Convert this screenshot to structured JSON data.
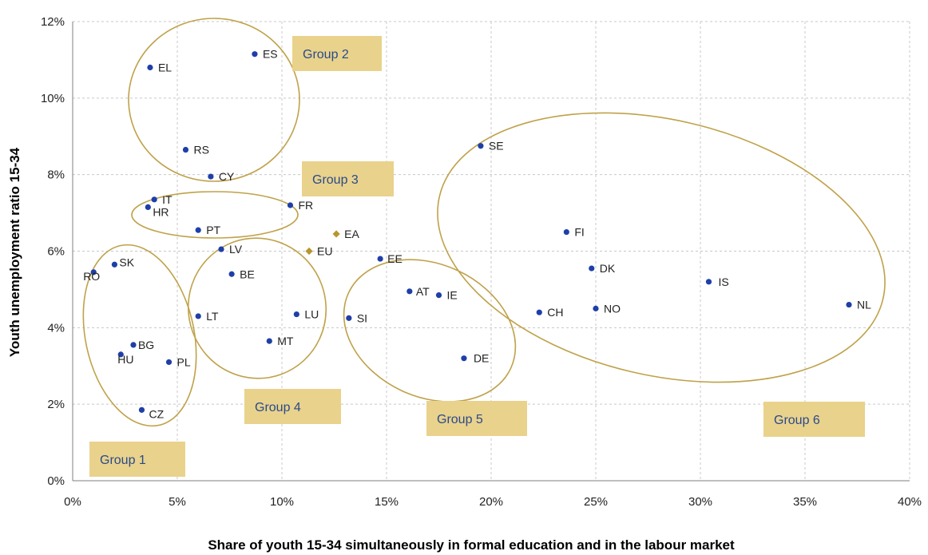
{
  "chart_data": {
    "type": "scatter",
    "xlabel": "Share of youth 15-34 simultaneously in formal education and in the labour market",
    "ylabel": "Youth unemployment ratio 15-34",
    "xlim": [
      0,
      40
    ],
    "ylim": [
      0,
      12
    ],
    "x_ticks": [
      "0%",
      "5%",
      "10%",
      "15%",
      "20%",
      "25%",
      "30%",
      "35%",
      "40%"
    ],
    "y_ticks": [
      "0%",
      "2%",
      "4%",
      "6%",
      "8%",
      "10%",
      "12%"
    ],
    "grid": "dashed",
    "colors": {
      "country": "#1f3fa8",
      "aggregate": "#b8962e",
      "group_ellipse": "#bfa24a",
      "group_box": "#e9d28b",
      "group_text": "#2a4a8c"
    },
    "points": [
      {
        "label": "EL",
        "x": 3.7,
        "y": 10.8,
        "kind": "country"
      },
      {
        "label": "ES",
        "x": 8.7,
        "y": 11.15,
        "kind": "country"
      },
      {
        "label": "RS",
        "x": 5.4,
        "y": 8.65,
        "kind": "country"
      },
      {
        "label": "CY",
        "x": 6.6,
        "y": 7.95,
        "kind": "country"
      },
      {
        "label": "IT",
        "x": 3.9,
        "y": 7.35,
        "kind": "country"
      },
      {
        "label": "HR",
        "x": 3.6,
        "y": 7.15,
        "kind": "country"
      },
      {
        "label": "FR",
        "x": 10.4,
        "y": 7.2,
        "kind": "country"
      },
      {
        "label": "PT",
        "x": 6.0,
        "y": 6.55,
        "kind": "country"
      },
      {
        "label": "LV",
        "x": 7.1,
        "y": 6.05,
        "kind": "country"
      },
      {
        "label": "BE",
        "x": 7.6,
        "y": 5.4,
        "kind": "country"
      },
      {
        "label": "LT",
        "x": 6.0,
        "y": 4.3,
        "kind": "country"
      },
      {
        "label": "LU",
        "x": 10.7,
        "y": 4.35,
        "kind": "country"
      },
      {
        "label": "MT",
        "x": 9.4,
        "y": 3.65,
        "kind": "country"
      },
      {
        "label": "SK",
        "x": 2.0,
        "y": 5.65,
        "kind": "country"
      },
      {
        "label": "RO",
        "x": 1.0,
        "y": 5.45,
        "kind": "country"
      },
      {
        "label": "BG",
        "x": 2.9,
        "y": 3.55,
        "kind": "country"
      },
      {
        "label": "HU",
        "x": 2.3,
        "y": 3.3,
        "kind": "country"
      },
      {
        "label": "PL",
        "x": 4.6,
        "y": 3.1,
        "kind": "country"
      },
      {
        "label": "CZ",
        "x": 3.3,
        "y": 1.85,
        "kind": "country"
      },
      {
        "label": "SI",
        "x": 13.2,
        "y": 4.25,
        "kind": "country"
      },
      {
        "label": "EE",
        "x": 14.7,
        "y": 5.8,
        "kind": "country"
      },
      {
        "label": "AT",
        "x": 16.1,
        "y": 4.95,
        "kind": "country"
      },
      {
        "label": "IE",
        "x": 17.5,
        "y": 4.85,
        "kind": "country"
      },
      {
        "label": "DE",
        "x": 18.7,
        "y": 3.2,
        "kind": "country"
      },
      {
        "label": "SE",
        "x": 19.5,
        "y": 8.75,
        "kind": "country"
      },
      {
        "label": "FI",
        "x": 23.6,
        "y": 6.5,
        "kind": "country"
      },
      {
        "label": "DK",
        "x": 24.8,
        "y": 5.55,
        "kind": "country"
      },
      {
        "label": "CH",
        "x": 22.3,
        "y": 4.4,
        "kind": "country"
      },
      {
        "label": "NO",
        "x": 25.0,
        "y": 4.5,
        "kind": "country"
      },
      {
        "label": "IS",
        "x": 30.4,
        "y": 5.2,
        "kind": "country"
      },
      {
        "label": "NL",
        "x": 37.1,
        "y": 4.6,
        "kind": "country"
      },
      {
        "label": "EA",
        "x": 12.6,
        "y": 6.45,
        "kind": "aggregate"
      },
      {
        "label": "EU",
        "x": 11.3,
        "y": 6.0,
        "kind": "aggregate"
      }
    ],
    "groups": [
      {
        "label": "Group 1"
      },
      {
        "label": "Group 2"
      },
      {
        "label": "Group 3"
      },
      {
        "label": "Group 4"
      },
      {
        "label": "Group 5"
      },
      {
        "label": "Group 6"
      }
    ]
  }
}
